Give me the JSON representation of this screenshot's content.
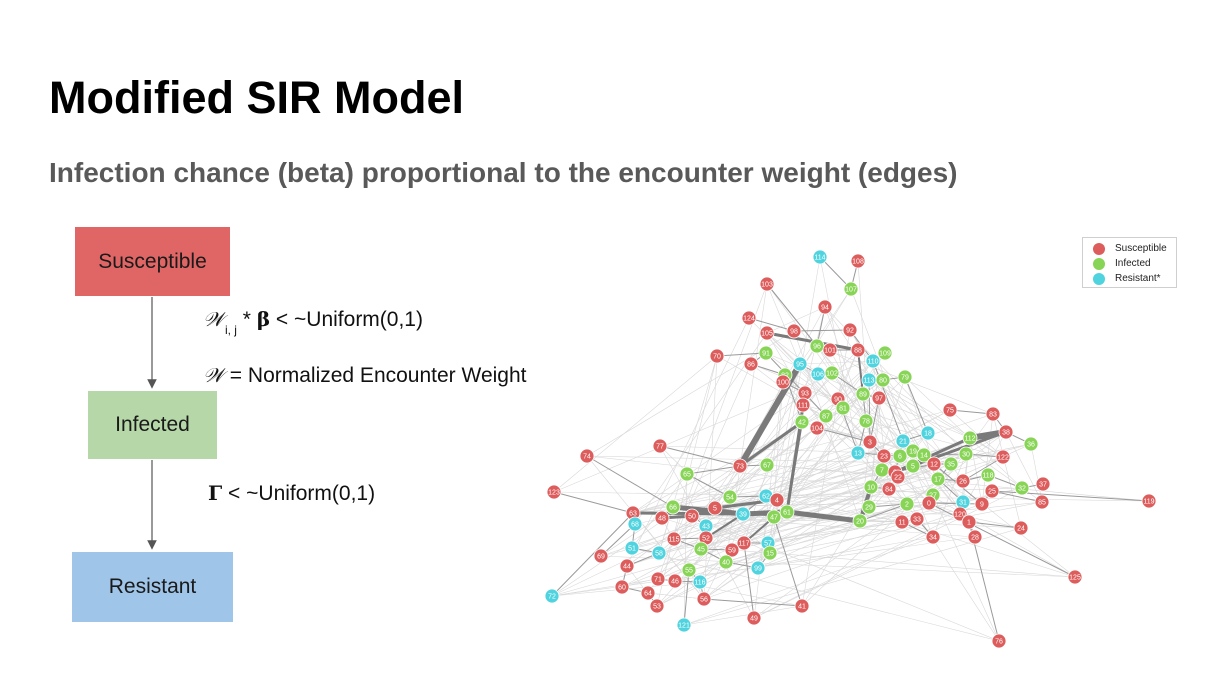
{
  "slide": {
    "title": "Modified SIR Model",
    "subtitle": "Infection chance (beta) proportional to the encounter weight (edges)"
  },
  "flow": {
    "states": [
      "Susceptible",
      "Infected",
      "Resistant"
    ],
    "colors": {
      "susceptible": "#e06666",
      "infected": "#b6d7a8",
      "resistant": "#9fc5e8"
    }
  },
  "equations": {
    "w_symbol": "𝒲",
    "w_subscript": "i, j",
    "infection_rule_mid": " * ",
    "beta": "β",
    "infection_rule_tail": " < ~Uniform(0,1)",
    "w_definition": " = Normalized Encounter Weight",
    "gamma": "Γ",
    "recovery_rule_tail": " < ~Uniform(0,1)"
  },
  "legend": {
    "items": [
      {
        "label": "Susceptible",
        "color": "#dd5c5c"
      },
      {
        "label": "Infected",
        "color": "#88d456"
      },
      {
        "label": "Resistant*",
        "color": "#4fd3de"
      }
    ]
  },
  "network": {
    "node_colors": {
      "S": "#dd5c5c",
      "I": "#88d456",
      "R": "#4fd3de"
    },
    "nodes": [
      {
        "id": "114",
        "s": "R"
      },
      {
        "id": "108",
        "s": "S"
      },
      {
        "id": "103",
        "s": "S"
      },
      {
        "id": "107",
        "s": "I"
      },
      {
        "id": "94",
        "s": "S"
      },
      {
        "id": "124",
        "s": "S"
      },
      {
        "id": "105",
        "s": "S"
      },
      {
        "id": "98",
        "s": "S"
      },
      {
        "id": "92",
        "s": "S"
      },
      {
        "id": "96",
        "s": "I"
      },
      {
        "id": "101",
        "s": "S"
      },
      {
        "id": "88",
        "s": "S"
      },
      {
        "id": "70",
        "s": "S"
      },
      {
        "id": "91",
        "s": "I"
      },
      {
        "id": "86",
        "s": "S"
      },
      {
        "id": "95",
        "s": "R"
      },
      {
        "id": "109",
        "s": "I"
      },
      {
        "id": "110",
        "s": "R"
      },
      {
        "id": "82",
        "s": "I"
      },
      {
        "id": "100",
        "s": "S"
      },
      {
        "id": "106",
        "s": "R"
      },
      {
        "id": "102",
        "s": "I"
      },
      {
        "id": "113",
        "s": "R"
      },
      {
        "id": "80",
        "s": "I"
      },
      {
        "id": "79",
        "s": "I"
      },
      {
        "id": "93",
        "s": "S"
      },
      {
        "id": "89",
        "s": "I"
      },
      {
        "id": "97",
        "s": "S"
      },
      {
        "id": "111",
        "s": "S"
      },
      {
        "id": "90",
        "s": "S"
      },
      {
        "id": "81",
        "s": "I"
      },
      {
        "id": "87",
        "s": "I"
      },
      {
        "id": "78",
        "s": "I"
      },
      {
        "id": "42",
        "s": "I"
      },
      {
        "id": "104",
        "s": "S"
      },
      {
        "id": "75",
        "s": "S"
      },
      {
        "id": "83",
        "s": "S"
      },
      {
        "id": "38",
        "s": "S"
      },
      {
        "id": "112",
        "s": "I"
      },
      {
        "id": "36",
        "s": "I"
      },
      {
        "id": "18",
        "s": "R"
      },
      {
        "id": "21",
        "s": "R"
      },
      {
        "id": "3",
        "s": "S"
      },
      {
        "id": "77",
        "s": "S"
      },
      {
        "id": "74",
        "s": "S"
      },
      {
        "id": "13",
        "s": "R"
      },
      {
        "id": "23",
        "s": "S"
      },
      {
        "id": "6",
        "s": "I"
      },
      {
        "id": "19",
        "s": "I"
      },
      {
        "id": "14",
        "s": "I"
      },
      {
        "id": "30",
        "s": "I"
      },
      {
        "id": "122",
        "s": "S"
      },
      {
        "id": "73",
        "s": "S"
      },
      {
        "id": "67",
        "s": "I"
      },
      {
        "id": "65",
        "s": "I"
      },
      {
        "id": "7",
        "s": "I"
      },
      {
        "id": "8",
        "s": "S"
      },
      {
        "id": "12",
        "s": "S"
      },
      {
        "id": "35",
        "s": "I"
      },
      {
        "id": "5",
        "s": "I"
      },
      {
        "id": "22",
        "s": "S"
      },
      {
        "id": "17",
        "s": "I"
      },
      {
        "id": "26",
        "s": "S"
      },
      {
        "id": "118",
        "s": "I"
      },
      {
        "id": "37",
        "s": "S"
      },
      {
        "id": "32",
        "s": "I"
      },
      {
        "id": "123",
        "s": "S"
      },
      {
        "id": "10",
        "s": "I"
      },
      {
        "id": "84",
        "s": "S"
      },
      {
        "id": "27",
        "s": "I"
      },
      {
        "id": "25",
        "s": "S"
      },
      {
        "id": "85",
        "s": "S"
      },
      {
        "id": "119",
        "s": "S"
      },
      {
        "id": "54",
        "s": "I"
      },
      {
        "id": "62",
        "s": "R"
      },
      {
        "id": "4",
        "s": "S"
      },
      {
        "id": "0",
        "s": "S"
      },
      {
        "id": "31",
        "s": "R"
      },
      {
        "id": "9",
        "s": "S"
      },
      {
        "id": "2",
        "s": "I"
      },
      {
        "id": "29",
        "s": "I"
      },
      {
        "id": "66",
        "s": "I"
      },
      {
        "id": "63",
        "s": "S"
      },
      {
        "id": "48",
        "s": "S"
      },
      {
        "id": "50",
        "s": "S"
      },
      {
        "id": "5b",
        "label": "5",
        "s": "S"
      },
      {
        "id": "39",
        "s": "R"
      },
      {
        "id": "47",
        "s": "I"
      },
      {
        "id": "61",
        "s": "I"
      },
      {
        "id": "20",
        "s": "I"
      },
      {
        "id": "11",
        "s": "S"
      },
      {
        "id": "33",
        "s": "S"
      },
      {
        "id": "120",
        "s": "S"
      },
      {
        "id": "1",
        "s": "S"
      },
      {
        "id": "24",
        "s": "S"
      },
      {
        "id": "68",
        "s": "R"
      },
      {
        "id": "43",
        "s": "R"
      },
      {
        "id": "52",
        "s": "S"
      },
      {
        "id": "115",
        "s": "S"
      },
      {
        "id": "117",
        "s": "S"
      },
      {
        "id": "57",
        "s": "R"
      },
      {
        "id": "34",
        "s": "S"
      },
      {
        "id": "28",
        "s": "S"
      },
      {
        "id": "51",
        "s": "R"
      },
      {
        "id": "45",
        "s": "I"
      },
      {
        "id": "59",
        "s": "S"
      },
      {
        "id": "15",
        "s": "I"
      },
      {
        "id": "58",
        "s": "R"
      },
      {
        "id": "69",
        "s": "S"
      },
      {
        "id": "40",
        "s": "I"
      },
      {
        "id": "44",
        "s": "S"
      },
      {
        "id": "55",
        "s": "I"
      },
      {
        "id": "99",
        "s": "R"
      },
      {
        "id": "71",
        "s": "S"
      },
      {
        "id": "46",
        "s": "S"
      },
      {
        "id": "116",
        "s": "R"
      },
      {
        "id": "60",
        "s": "S"
      },
      {
        "id": "64",
        "s": "S"
      },
      {
        "id": "56",
        "s": "S"
      },
      {
        "id": "53",
        "s": "S"
      },
      {
        "id": "72",
        "s": "R"
      },
      {
        "id": "41",
        "s": "S"
      },
      {
        "id": "125",
        "s": "S"
      },
      {
        "id": "121",
        "s": "R"
      },
      {
        "id": "49",
        "s": "S"
      },
      {
        "id": "76",
        "s": "S"
      }
    ]
  }
}
